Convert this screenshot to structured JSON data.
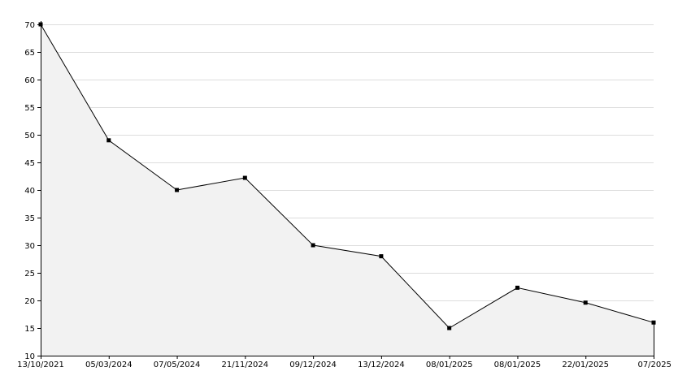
{
  "chart_data": {
    "type": "area",
    "categories": [
      "13/10/2021",
      "05/03/2024",
      "07/05/2024",
      "21/11/2024",
      "09/12/2024",
      "13/12/2024",
      "08/01/2025",
      "08/01/2025",
      "22/01/2025",
      "07/2025"
    ],
    "series": [
      {
        "values": [
          70,
          49,
          40,
          42.2,
          30,
          28,
          15,
          22.3,
          19.6,
          16
        ]
      }
    ],
    "title": "",
    "xlabel": "",
    "ylabel": "",
    "ylim": [
      10,
      70
    ],
    "yticks": [
      10,
      15,
      20,
      25,
      30,
      35,
      40,
      45,
      50,
      55,
      60,
      65,
      70
    ],
    "grid": true,
    "colors": {
      "line": "#000000",
      "fill": "#f2f2f2",
      "grid": "#dddddd",
      "axis": "#000000"
    }
  }
}
